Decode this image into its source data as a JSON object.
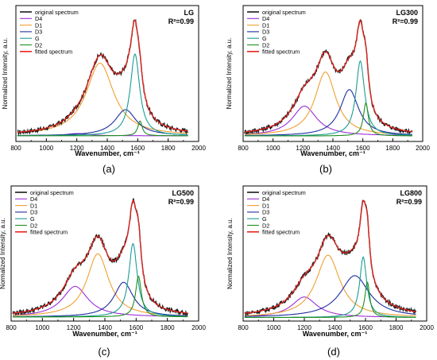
{
  "figure": {
    "panel_labels": [
      "(a)",
      "(b)",
      "(c)",
      "(d)"
    ],
    "colors": {
      "original spectrum": "#1a1a1a",
      "D4": "#9b30d9",
      "D1": "#f0a030",
      "D3": "#1f2f9f",
      "G": "#1a9c94",
      "D2": "#1e8f1e",
      "fitted spectrum": "#e8251f"
    }
  },
  "chart_data": [
    {
      "type": "line",
      "panel": "(a)",
      "sample_label": "LG",
      "r2_label": "R²=0.99",
      "xlabel": "Wavenumber, cm⁻¹",
      "ylabel": "Normalized Intensity, a.u.",
      "xlim": [
        800,
        2000
      ],
      "x_ticks": [
        "800",
        "1000",
        "1200",
        "1400",
        "1600",
        "1800",
        "2000"
      ],
      "y_ticks_labeled": false,
      "legend": [
        "original spectrum",
        "D4",
        "D1",
        "D3",
        "G",
        "D2",
        "fitted spectrum"
      ],
      "legend_position": "top-left",
      "baseline": 0.05,
      "bands": {
        "D4": {
          "center": 1200,
          "height": 0.02,
          "width": 170
        },
        "D1": {
          "center": 1352,
          "height": 0.64,
          "width": 220
        },
        "D3": {
          "center": 1520,
          "height": 0.23,
          "width": 170
        },
        "G": {
          "center": 1582,
          "height": 0.72,
          "width": 75
        },
        "D2": {
          "center": 1615,
          "height": 0.13,
          "width": 35
        }
      },
      "fitted_peak_y": 1.0,
      "x_range_data": [
        810,
        1930
      ]
    },
    {
      "type": "line",
      "panel": "(b)",
      "sample_label": "LG300",
      "r2_label": "R²=0.99",
      "xlabel": "Wavenumber, cm⁻¹",
      "ylabel": "Normalized Intensity, a.u.",
      "xlim": [
        800,
        2000
      ],
      "x_ticks": [
        "800",
        "1000",
        "1200",
        "1400",
        "1600",
        "1800",
        "2000"
      ],
      "y_ticks_labeled": false,
      "legend": [
        "original spectrum",
        "D4",
        "D1",
        "D3",
        "G",
        "D2",
        "fitted spectrum"
      ],
      "legend_position": "top-left",
      "baseline": 0.05,
      "bands": {
        "D4": {
          "center": 1210,
          "height": 0.27,
          "width": 200
        },
        "D1": {
          "center": 1350,
          "height": 0.58,
          "width": 170
        },
        "D3": {
          "center": 1510,
          "height": 0.42,
          "width": 150
        },
        "G": {
          "center": 1583,
          "height": 0.68,
          "width": 70
        },
        "D2": {
          "center": 1620,
          "height": 0.3,
          "width": 40
        }
      },
      "fitted_peak_y": 1.0,
      "x_range_data": [
        810,
        1930
      ]
    },
    {
      "type": "line",
      "panel": "(c)",
      "sample_label": "LG500",
      "r2_label": "R²=0.99",
      "xlabel": "Wavenumber, cm⁻¹",
      "ylabel": "Normalized Intensity, a.u.",
      "xlim": [
        800,
        2000
      ],
      "x_ticks": [
        "800",
        "1000",
        "1200",
        "1400",
        "1600",
        "1800",
        "2000"
      ],
      "y_ticks_labeled": false,
      "legend": [
        "original spectrum",
        "D4",
        "D1",
        "D3",
        "G",
        "D2",
        "fitted spectrum"
      ],
      "legend_position": "top-left",
      "baseline": 0.04,
      "bands": {
        "D4": {
          "center": 1210,
          "height": 0.3,
          "width": 200
        },
        "D1": {
          "center": 1355,
          "height": 0.62,
          "width": 170
        },
        "D3": {
          "center": 1520,
          "height": 0.34,
          "width": 150
        },
        "G": {
          "center": 1580,
          "height": 0.72,
          "width": 65
        },
        "D2": {
          "center": 1615,
          "height": 0.4,
          "width": 45
        }
      },
      "fitted_peak_y": 1.0,
      "x_range_data": [
        810,
        1930
      ]
    },
    {
      "type": "line",
      "panel": "(d)",
      "sample_label": "LG800",
      "r2_label": "R²=0.99",
      "xlabel": "Wavenumber, cm⁻¹",
      "ylabel": "Normalized Intensity, a.u.",
      "xlim": [
        800,
        2000
      ],
      "x_ticks": [
        "800",
        "1000",
        "1200",
        "1400",
        "1600",
        "1800",
        "2000"
      ],
      "y_ticks_labeled": false,
      "legend": [
        "original spectrum",
        "D4",
        "D1",
        "D3",
        "G",
        "D2",
        "fitted spectrum"
      ],
      "legend_position": "top-left",
      "baseline": 0.04,
      "bands": {
        "D4": {
          "center": 1200,
          "height": 0.23,
          "width": 200
        },
        "D1": {
          "center": 1355,
          "height": 0.7,
          "width": 190
        },
        "D3": {
          "center": 1530,
          "height": 0.47,
          "width": 230
        },
        "G": {
          "center": 1585,
          "height": 0.68,
          "width": 55
        },
        "D2": {
          "center": 1612,
          "height": 0.4,
          "width": 38
        }
      },
      "fitted_peak_y": 1.0,
      "x_range_data": [
        810,
        1930
      ]
    }
  ]
}
